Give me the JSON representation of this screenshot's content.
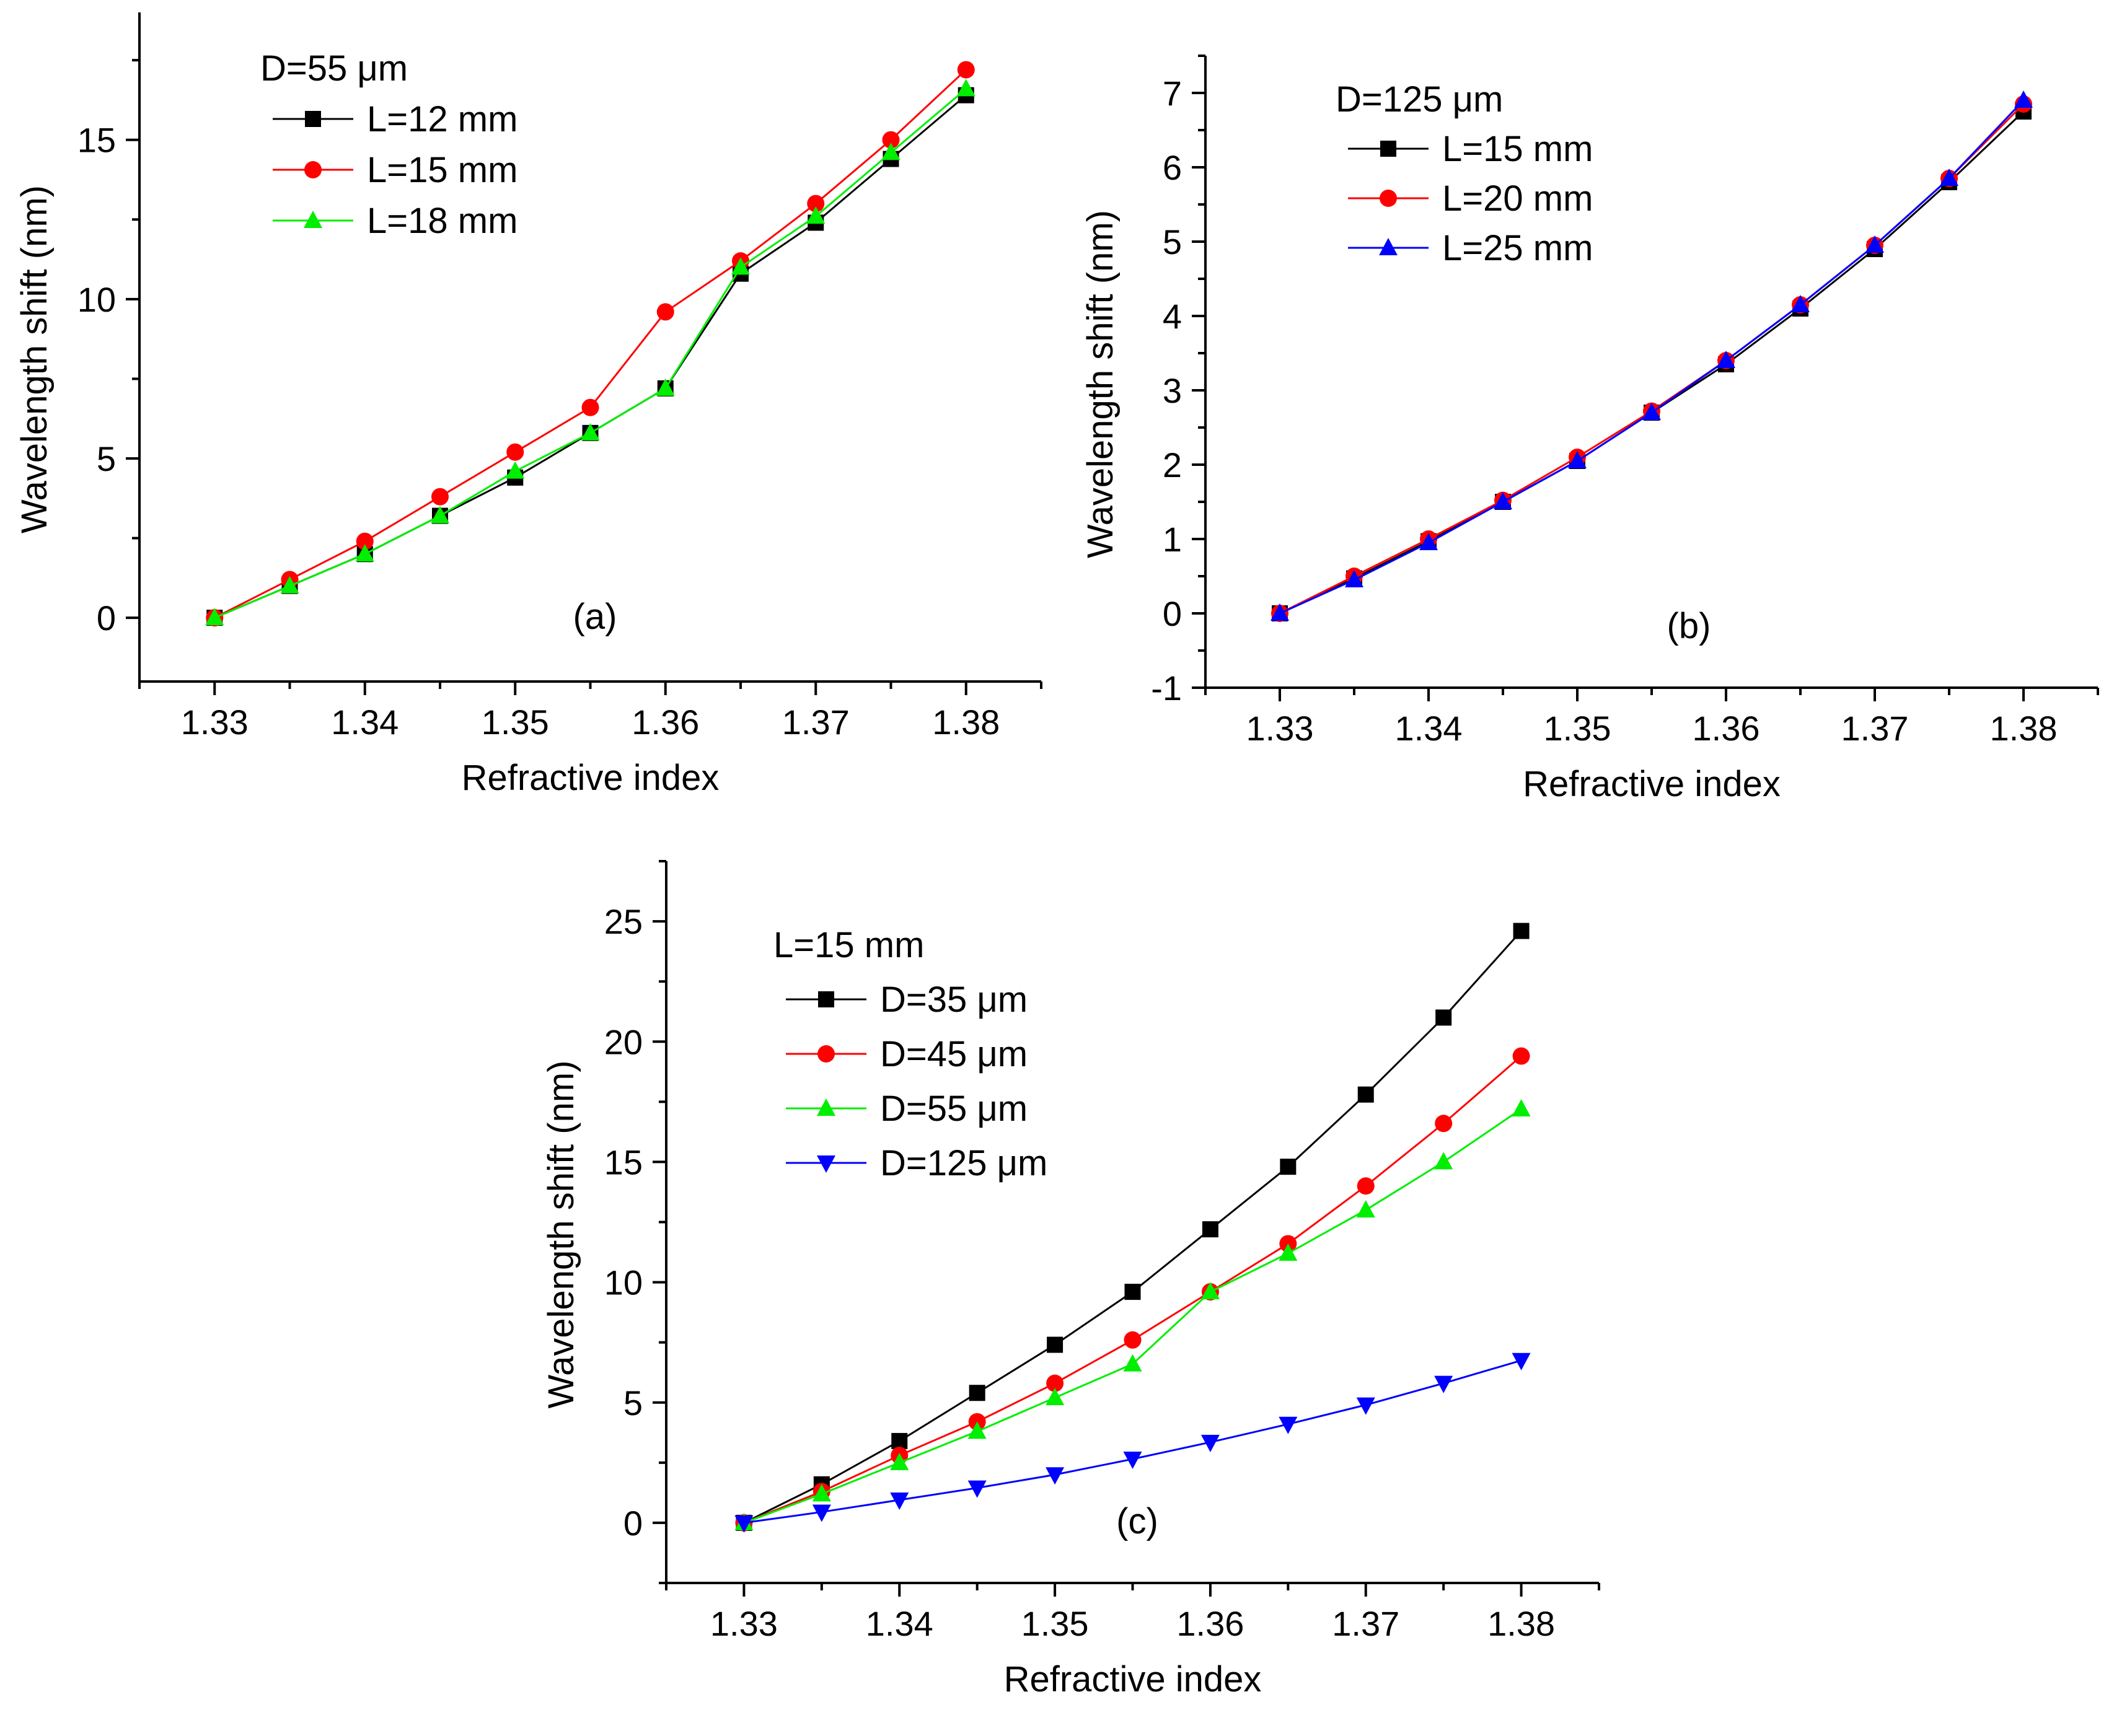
{
  "figure": {
    "background": "#ffffff",
    "axis_color": "#000000"
  },
  "chart_data": [
    {
      "type": "line",
      "panel_label": "(a)",
      "xlabel": "Refractive index",
      "ylabel": "Wavelength shift (nm)",
      "xlim": [
        1.325,
        1.385
      ],
      "ylim": [
        -2,
        19
      ],
      "xticks": [
        "1.33",
        "1.34",
        "1.35",
        "1.36",
        "1.37",
        "1.38"
      ],
      "yticks": [
        "0",
        "5",
        "10",
        "15"
      ],
      "grid": false,
      "legend": {
        "placement": "top-left",
        "header": "D=55 μm"
      },
      "x": [
        1.33,
        1.335,
        1.34,
        1.345,
        1.35,
        1.355,
        1.36,
        1.365,
        1.37,
        1.375,
        1.38
      ],
      "series": [
        {
          "name": "L=12 mm",
          "color": "#000000",
          "marker": "square",
          "values": [
            0,
            1.0,
            2.0,
            3.2,
            4.4,
            5.8,
            7.2,
            10.8,
            12.4,
            14.4,
            16.4
          ]
        },
        {
          "name": "L=15 mm",
          "color": "#ff0000",
          "marker": "circle",
          "values": [
            0,
            1.2,
            2.4,
            3.8,
            5.2,
            6.6,
            9.6,
            11.2,
            13.0,
            15.0,
            17.2
          ]
        },
        {
          "name": "L=18 mm",
          "color": "#00ee00",
          "marker": "triangle-up",
          "values": [
            0,
            1.0,
            2.0,
            3.2,
            4.6,
            5.8,
            7.2,
            11.0,
            12.6,
            14.6,
            16.6
          ]
        }
      ]
    },
    {
      "type": "line",
      "panel_label": "(b)",
      "xlabel": "Refractive index",
      "ylabel": "Wavelength shift (nm)",
      "xlim": [
        1.325,
        1.385
      ],
      "ylim": [
        -1,
        7.5
      ],
      "xticks": [
        "1.33",
        "1.34",
        "1.35",
        "1.36",
        "1.37",
        "1.38"
      ],
      "yticks": [
        "-1",
        "0",
        "1",
        "2",
        "3",
        "4",
        "5",
        "6",
        "7"
      ],
      "grid": false,
      "legend": {
        "placement": "top-left",
        "header": "D=125 μm"
      },
      "x": [
        1.33,
        1.335,
        1.34,
        1.345,
        1.35,
        1.355,
        1.36,
        1.365,
        1.37,
        1.375,
        1.38
      ],
      "series": [
        {
          "name": "L=15 mm",
          "color": "#000000",
          "marker": "square",
          "values": [
            0,
            0.47,
            0.97,
            1.5,
            2.05,
            2.7,
            3.35,
            4.1,
            4.9,
            5.8,
            6.75
          ]
        },
        {
          "name": "L=20 mm",
          "color": "#ff0000",
          "marker": "circle",
          "values": [
            0,
            0.5,
            1.0,
            1.52,
            2.1,
            2.72,
            3.4,
            4.15,
            4.95,
            5.85,
            6.85
          ]
        },
        {
          "name": "L=25 mm",
          "color": "#0000ff",
          "marker": "triangle-up",
          "values": [
            0,
            0.45,
            0.95,
            1.5,
            2.05,
            2.7,
            3.4,
            4.15,
            4.95,
            5.85,
            6.9
          ]
        }
      ]
    },
    {
      "type": "line",
      "panel_label": "(c)",
      "xlabel": "Refractive index",
      "ylabel": "Wavelength shift (nm)",
      "xlim": [
        1.325,
        1.385
      ],
      "ylim": [
        -2.5,
        27.5
      ],
      "xticks": [
        "1.33",
        "1.34",
        "1.35",
        "1.36",
        "1.37",
        "1.38"
      ],
      "yticks": [
        "0",
        "5",
        "10",
        "15",
        "20",
        "25"
      ],
      "grid": false,
      "legend": {
        "placement": "top-left",
        "header": "L=15 mm"
      },
      "x": [
        1.33,
        1.335,
        1.34,
        1.345,
        1.35,
        1.355,
        1.36,
        1.365,
        1.37,
        1.375,
        1.38
      ],
      "series": [
        {
          "name": "D=35 μm",
          "color": "#000000",
          "marker": "square",
          "values": [
            0,
            1.6,
            3.4,
            5.4,
            7.4,
            9.6,
            12.2,
            14.8,
            17.8,
            21.0,
            24.6
          ]
        },
        {
          "name": "D=45 μm",
          "color": "#ff0000",
          "marker": "circle",
          "values": [
            0,
            1.3,
            2.8,
            4.2,
            5.8,
            7.6,
            9.6,
            11.6,
            14.0,
            16.6,
            19.4
          ]
        },
        {
          "name": "D=55 μm",
          "color": "#00ee00",
          "marker": "triangle-up",
          "values": [
            0,
            1.2,
            2.5,
            3.8,
            5.2,
            6.6,
            9.6,
            11.2,
            13.0,
            15.0,
            17.2
          ]
        },
        {
          "name": "D=125 μm",
          "color": "#0000ff",
          "marker": "triangle-down",
          "values": [
            0,
            0.45,
            0.95,
            1.45,
            2.0,
            2.65,
            3.35,
            4.1,
            4.9,
            5.8,
            6.75
          ]
        }
      ]
    }
  ]
}
